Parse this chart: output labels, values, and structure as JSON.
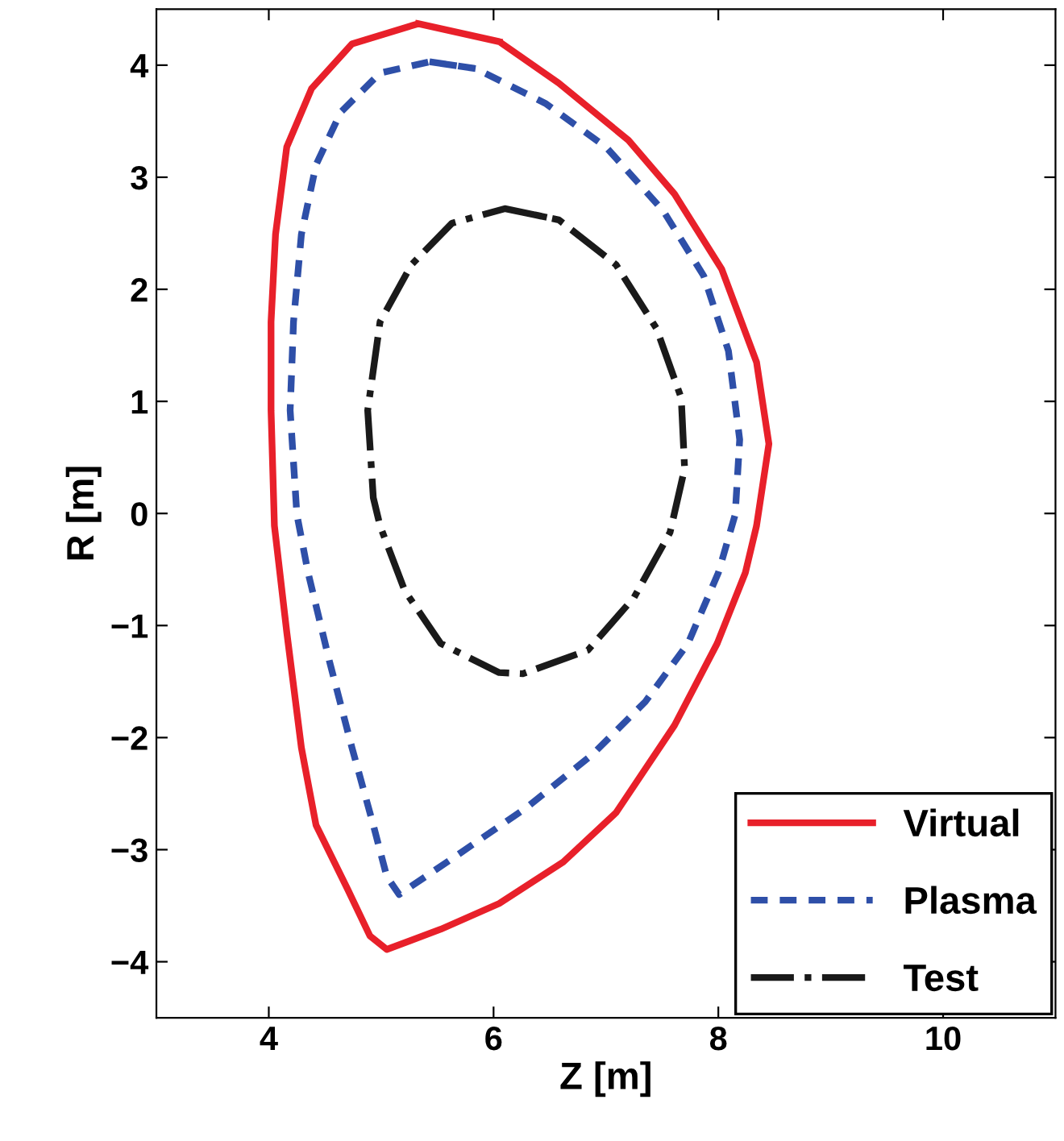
{
  "chart_data": {
    "type": "line",
    "xlabel": "Z [m]",
    "ylabel": "R [m]",
    "xlim": [
      3,
      11
    ],
    "ylim": [
      -4.5,
      4.5
    ],
    "xticks": [
      4,
      6,
      8,
      10
    ],
    "yticks": [
      -4,
      -3,
      -2,
      -1,
      0,
      1,
      2,
      3,
      4
    ],
    "grid": false,
    "legend": "bottom right",
    "series": [
      {
        "name": "Virtual",
        "color": "#e8202a",
        "line_style": "solid",
        "x": [
          5.33,
          6.05,
          6.58,
          7.2,
          7.61,
          8.03,
          8.34,
          8.45,
          8.34,
          8.24,
          7.99,
          7.61,
          7.09,
          6.62,
          6.05,
          5.53,
          5.05,
          4.9,
          4.7,
          4.42,
          4.29,
          4.16,
          4.05,
          4.02,
          4.02,
          4.06,
          4.16,
          4.38,
          4.74
        ],
        "values": [
          4.37,
          4.21,
          3.84,
          3.33,
          2.85,
          2.18,
          1.35,
          0.62,
          -0.11,
          -0.53,
          -1.16,
          -1.89,
          -2.67,
          -3.11,
          -3.48,
          -3.71,
          -3.89,
          -3.77,
          -3.35,
          -2.78,
          -2.09,
          -1.06,
          -0.11,
          0.92,
          1.71,
          2.49,
          3.27,
          3.79,
          4.19
        ]
      },
      {
        "name": "Plasma",
        "color": "#2e4fa8",
        "line_style": "dashed",
        "x": [
          5.43,
          5.84,
          6.46,
          7.0,
          7.51,
          7.87,
          8.09,
          8.19,
          8.15,
          8.0,
          7.73,
          7.35,
          6.88,
          6.3,
          5.69,
          5.16,
          5.05,
          4.93,
          4.74,
          4.54,
          4.35,
          4.25,
          4.19,
          4.22,
          4.29,
          4.42,
          4.64,
          4.99
        ],
        "values": [
          4.03,
          3.97,
          3.66,
          3.27,
          2.7,
          2.12,
          1.45,
          0.66,
          -0.01,
          -0.53,
          -1.16,
          -1.68,
          -2.15,
          -2.62,
          -3.04,
          -3.4,
          -3.24,
          -2.78,
          -2.09,
          -1.32,
          -0.53,
          -0.01,
          0.92,
          1.71,
          2.49,
          3.11,
          3.58,
          3.93
        ]
      },
      {
        "name": "Test",
        "color": "#1a1a1a",
        "line_style": "dashdot",
        "x": [
          6.1,
          6.58,
          7.09,
          7.45,
          7.67,
          7.7,
          7.57,
          7.25,
          6.84,
          6.26,
          6.05,
          5.53,
          5.21,
          4.99,
          4.93,
          4.88,
          4.99,
          5.27,
          5.63
        ],
        "values": [
          2.72,
          2.62,
          2.22,
          1.65,
          1.03,
          0.4,
          -0.17,
          -0.75,
          -1.22,
          -1.43,
          -1.42,
          -1.16,
          -0.69,
          -0.11,
          0.14,
          0.92,
          1.71,
          2.22,
          2.59
        ]
      }
    ]
  }
}
